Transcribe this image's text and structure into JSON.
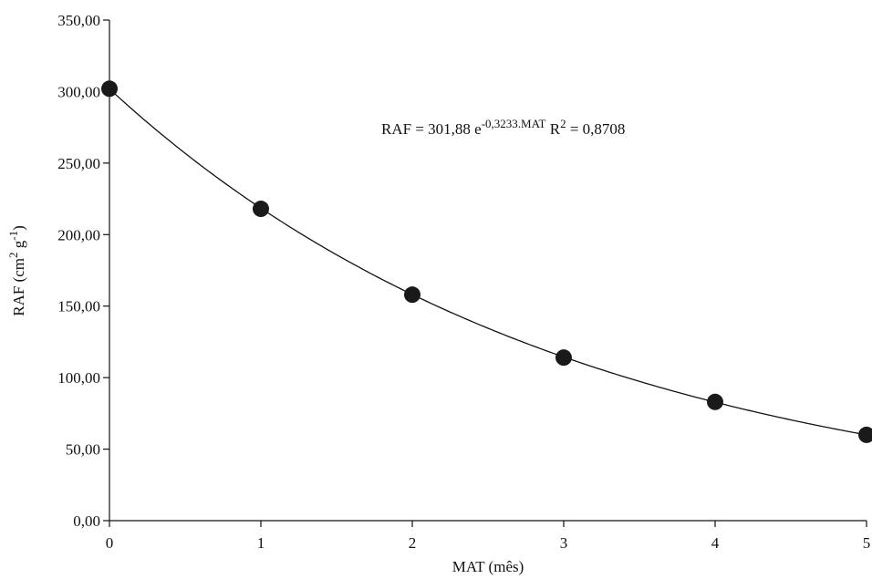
{
  "chart_data": {
    "type": "scatter",
    "x_label": "MAT (mês)",
    "y_label": [
      {
        "text": "RAF (cm"
      },
      {
        "text": "2",
        "sup": true
      },
      {
        "text": " g"
      },
      {
        "text": "-1",
        "sup": true
      },
      {
        "text": ")"
      }
    ],
    "annotation": [
      {
        "text": "RAF = 301,88 e"
      },
      {
        "text": "-0,3233.MAT",
        "sup": true
      },
      {
        "text": " R"
      },
      {
        "text": "2",
        "sup": true
      },
      {
        "text": " = 0,8708"
      }
    ],
    "x": [
      0,
      1,
      2,
      3,
      4,
      5
    ],
    "values": [
      302,
      218,
      158,
      114,
      83,
      60
    ],
    "color": "#1a1a1a",
    "trendline": {
      "type": "exponential",
      "a": 301.88,
      "b": -0.3233
    },
    "xlim": [
      0,
      5
    ],
    "ylim": [
      0,
      350
    ],
    "xticks": [
      0,
      1,
      2,
      3,
      4,
      5
    ],
    "yticks": [
      {
        "value": 0,
        "label": "0,00"
      },
      {
        "value": 50,
        "label": "50,00"
      },
      {
        "value": 100,
        "label": "100,00"
      },
      {
        "value": 150,
        "label": "150,00"
      },
      {
        "value": 200,
        "label": "200,00"
      },
      {
        "value": 250,
        "label": "250,00"
      },
      {
        "value": 300,
        "label": "300,00"
      },
      {
        "value": 350,
        "label": "350,00"
      }
    ],
    "grid": false
  }
}
